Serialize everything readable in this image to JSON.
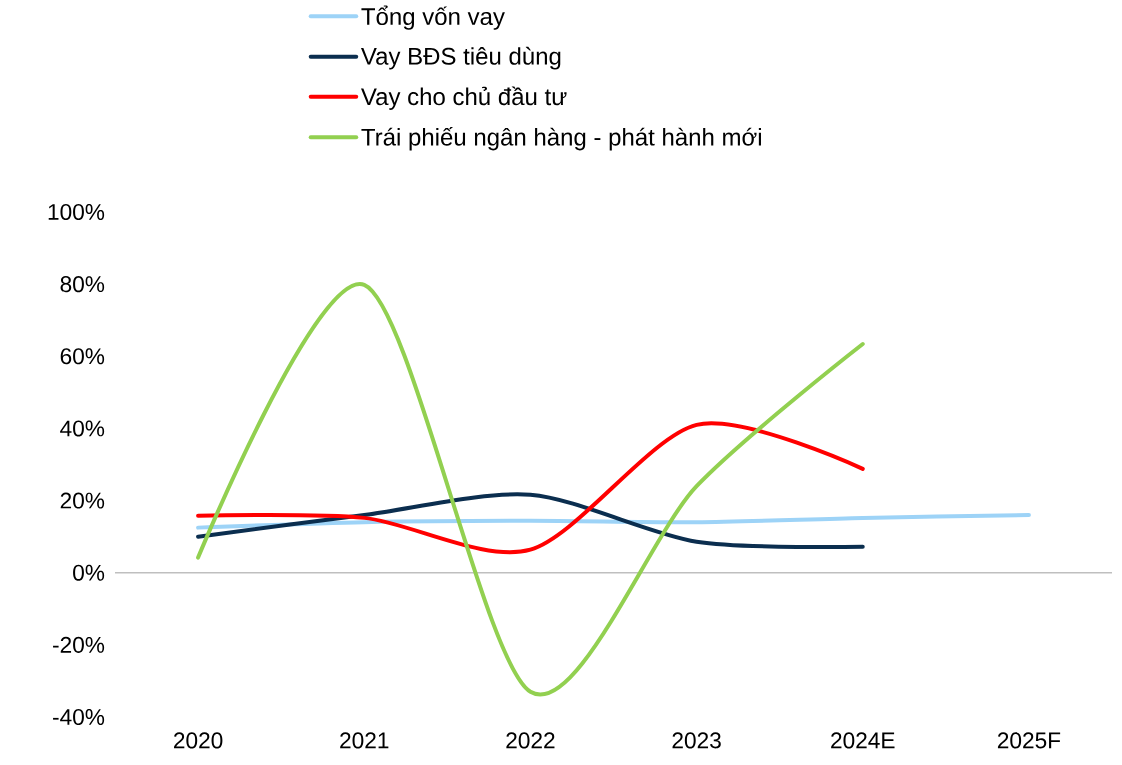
{
  "chart_data": {
    "type": "line",
    "categories": [
      "2020",
      "2021",
      "2022",
      "2023",
      "2024E",
      "2025F"
    ],
    "series": [
      {
        "name": "Tổng vốn vay",
        "color": "#9dd3f7",
        "values": [
          12.5,
          14,
          14.4,
          14,
          15.2,
          16
        ]
      },
      {
        "name": "Vay BĐS tiêu dùng",
        "color": "#0b2e4f",
        "values": [
          10,
          16,
          21.6,
          8.6,
          7.2,
          null
        ]
      },
      {
        "name": "Vay cho chủ đầu tư",
        "color": "#ff0000",
        "values": [
          15.8,
          15.2,
          6.4,
          41,
          28.8,
          null
        ]
      },
      {
        "name": "Trái phiếu ngân hàng - phát hành mới",
        "color": "#92d050",
        "values": [
          4.2,
          79.8,
          -33,
          24,
          63.4,
          null
        ]
      }
    ],
    "ylim": [
      -40,
      100
    ],
    "yticks": [
      {
        "value": -40,
        "label": "-40%"
      },
      {
        "value": -20,
        "label": "-20%"
      },
      {
        "value": 0,
        "label": "0%"
      },
      {
        "value": 20,
        "label": "20%"
      },
      {
        "value": 40,
        "label": "40%"
      },
      {
        "value": 60,
        "label": "60%"
      },
      {
        "value": 80,
        "label": "80%"
      },
      {
        "value": 100,
        "label": "100%"
      }
    ],
    "legend": "top",
    "marker": "none",
    "line_style": "solid"
  }
}
